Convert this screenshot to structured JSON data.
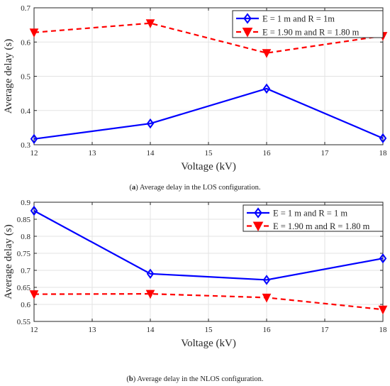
{
  "chart_data": [
    {
      "type": "line",
      "caption_label": "a",
      "caption_text": "Average delay in the LOS configuration.",
      "xlabel": "Voltage (kV)",
      "ylabel": "Average delay (s)",
      "xlim": [
        12,
        18
      ],
      "ylim": [
        0.3,
        0.7
      ],
      "xticks": [
        "12",
        "13",
        "14",
        "15",
        "16",
        "17",
        "18"
      ],
      "yticks": [
        "0.3",
        "0.4",
        "0.5",
        "0.6",
        "0.7"
      ],
      "grid": true,
      "legend_position": "top-right",
      "x": [
        12,
        14,
        16,
        18
      ],
      "series": [
        {
          "name": "E = 1 m and R = 1m",
          "values": [
            0.317,
            0.362,
            0.464,
            0.319
          ],
          "color": "#0000ff",
          "style": "solid",
          "marker": "diamond"
        },
        {
          "name": "E = 1.90 m and R = 1.80 m",
          "values": [
            0.628,
            0.655,
            0.568,
            0.618
          ],
          "color": "#ff0000",
          "style": "dashed",
          "marker": "triangle-down"
        }
      ]
    },
    {
      "type": "line",
      "caption_label": "b",
      "caption_text": "Average delay in the NLOS configuration.",
      "xlabel": "Voltage (kV)",
      "ylabel": "Average delay (s)",
      "xlim": [
        12,
        18
      ],
      "ylim": [
        0.55,
        0.9
      ],
      "xticks": [
        "12",
        "13",
        "14",
        "15",
        "16",
        "17",
        "18"
      ],
      "yticks": [
        "0.55",
        "0.6",
        "0.65",
        "0.7",
        "0.75",
        "0.8",
        "0.85",
        "0.9"
      ],
      "grid": true,
      "legend_position": "top-right",
      "x": [
        12,
        14,
        16,
        18
      ],
      "series": [
        {
          "name": "E = 1 m and R = 1 m",
          "values": [
            0.875,
            0.69,
            0.672,
            0.735
          ],
          "color": "#0000ff",
          "style": "solid",
          "marker": "diamond"
        },
        {
          "name": "E = 1.90 m and R = 1.80 m",
          "values": [
            0.63,
            0.631,
            0.62,
            0.585
          ],
          "color": "#ff0000",
          "style": "dashed",
          "marker": "triangle-down"
        }
      ]
    }
  ]
}
